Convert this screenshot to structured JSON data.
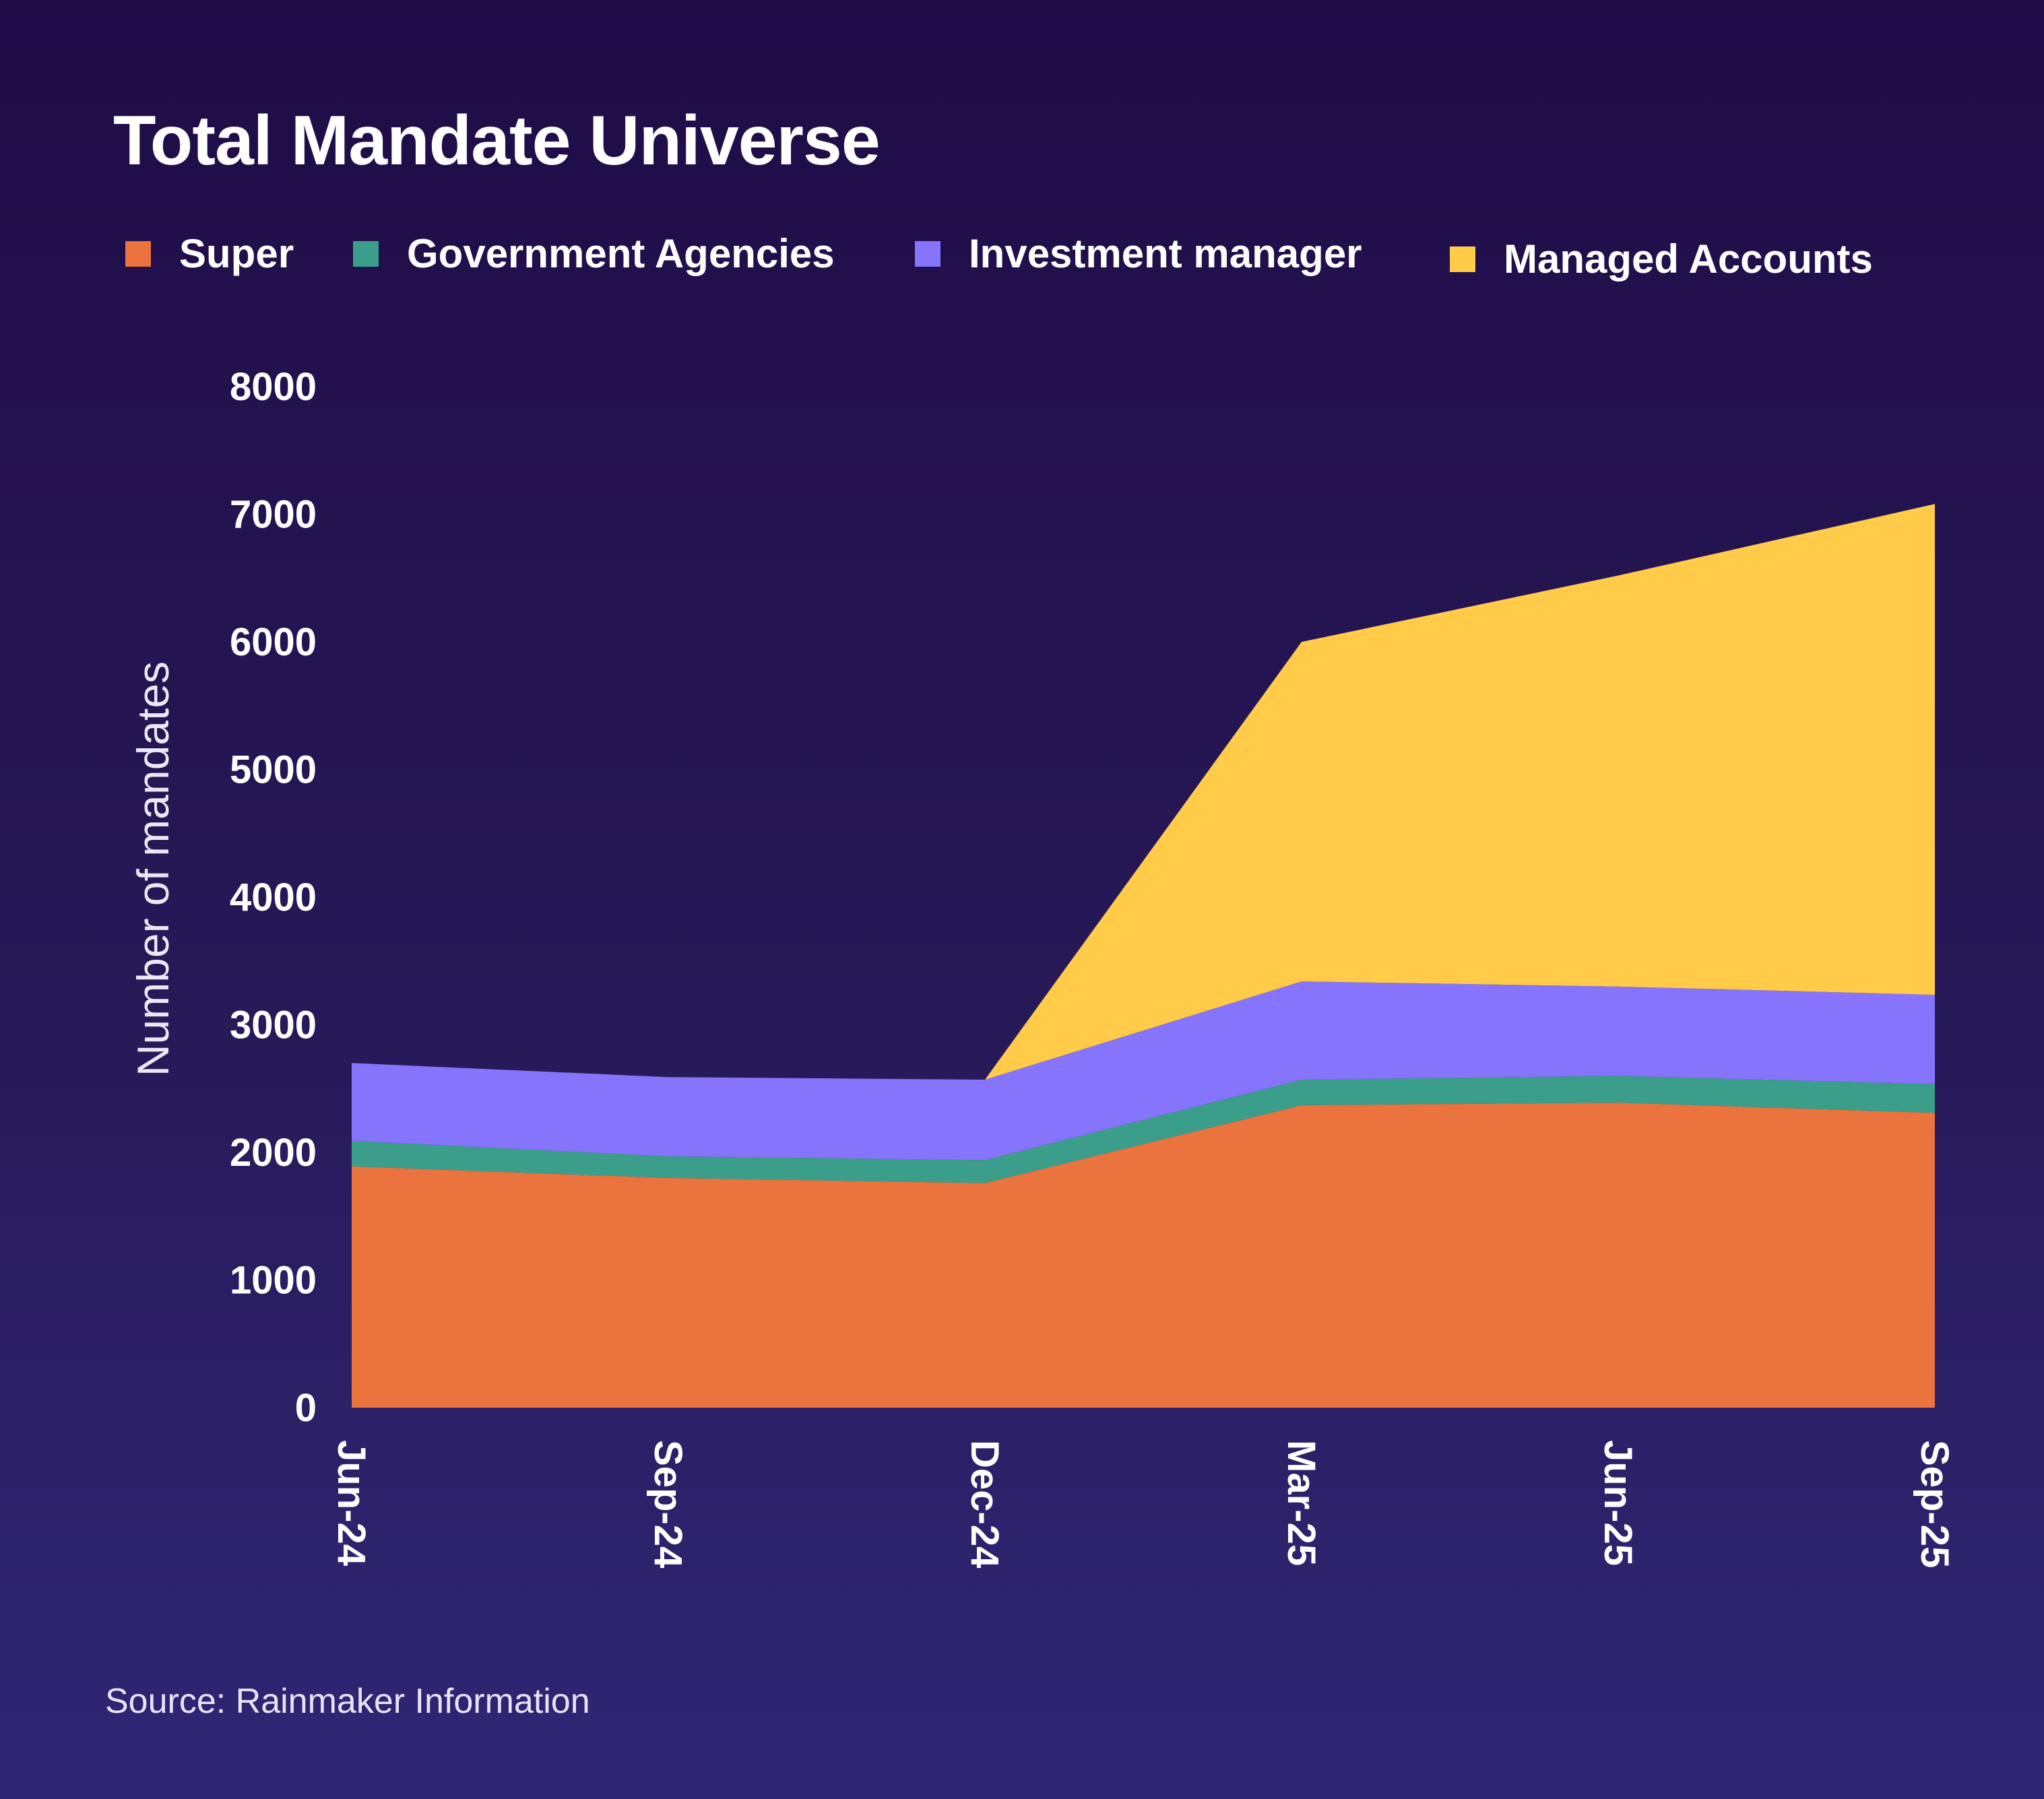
{
  "colors": {
    "super": "#ea733e",
    "government": "#3a9e8a",
    "investment": "#8774fc",
    "managed": "#ffcb48",
    "text": "#ffffff",
    "ylabel": "#ebe8f6"
  },
  "chart_data": {
    "type": "area",
    "stacked": true,
    "title": "Total Mandate Universe",
    "xlabel": "",
    "ylabel": "Number of mandates",
    "categories": [
      "Jun-24",
      "Sep-24",
      "Dec-24",
      "Mar-25",
      "Jun-25",
      "Sep-25"
    ],
    "ylim": [
      0,
      8000
    ],
    "yticks": [
      "0",
      "1000",
      "2000",
      "3000",
      "4000",
      "5000",
      "6000",
      "7000",
      "8000"
    ],
    "grid": false,
    "legend_position": "top",
    "series": [
      {
        "name": "Super",
        "key": "super",
        "values": [
          1890,
          1800,
          1760,
          2370,
          2390,
          2310
        ]
      },
      {
        "name": "Government Agencies",
        "key": "government",
        "values": [
          200,
          170,
          180,
          200,
          210,
          225
        ]
      },
      {
        "name": "Investment manager",
        "key": "investment",
        "values": [
          610,
          620,
          630,
          770,
          700,
          700
        ]
      },
      {
        "name": "Managed Accounts",
        "key": "managed",
        "values": [
          0,
          0,
          0,
          2660,
          3220,
          3845
        ]
      }
    ],
    "source": "Source: Rainmaker Information"
  }
}
